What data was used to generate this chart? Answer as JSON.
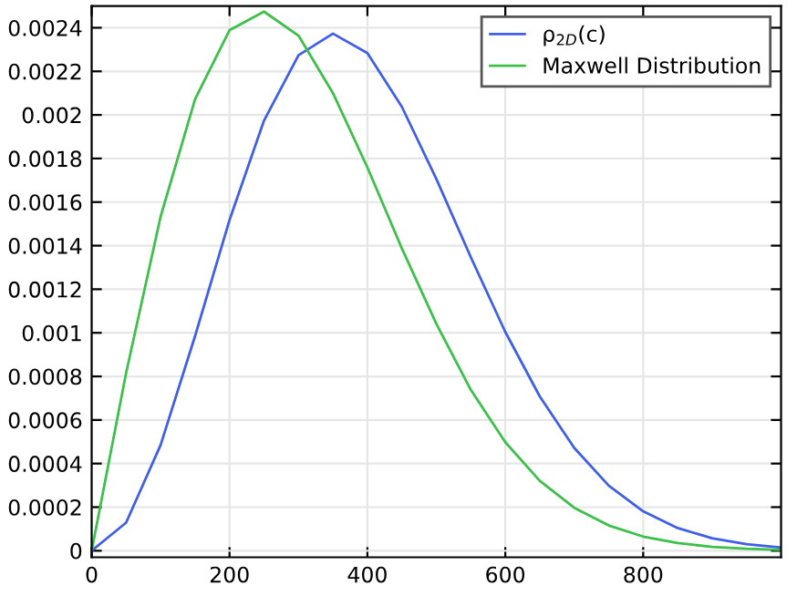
{
  "chart_data": {
    "type": "line",
    "x": [
      0,
      50,
      100,
      150,
      200,
      250,
      300,
      350,
      400,
      450,
      500,
      550,
      600,
      650,
      700,
      750,
      800,
      850,
      900,
      950,
      1000
    ],
    "series": [
      {
        "name": "ρ$_{2D}$(c)",
        "color": "#3f5fe8",
        "values": [
          0,
          0.000129,
          0.000485,
          0.000985,
          0.001518,
          0.001974,
          0.002274,
          0.002373,
          0.002284,
          0.002037,
          0.001706,
          0.001347,
          0.001004,
          0.000708,
          0.000472,
          0.000299,
          0.000181,
          0.000104,
          5.7e-05,
          3e-05,
          1.5e-05
        ]
      },
      {
        "name": "Maxwell Distribution",
        "color": "#3cc04a",
        "values": [
          0,
          0.000816,
          0.001533,
          0.002072,
          0.002389,
          0.002474,
          0.002364,
          0.0021,
          0.001759,
          0.001387,
          0.001041,
          0.000738,
          0.000498,
          0.000321,
          0.000197,
          0.000116,
          6.5e-05,
          3.5e-05,
          1.8e-05,
          9e-06,
          4e-06
        ]
      }
    ],
    "xlim": [
      0,
      1000
    ],
    "xticks": [
      0,
      200,
      400,
      600,
      800
    ],
    "ylim": [
      -3e-05,
      0.0025
    ],
    "yticks": [
      {
        "value": 0,
        "label": "0"
      },
      {
        "value": 0.0002,
        "label": "0.0002"
      },
      {
        "value": 0.0004,
        "label": "0.0004"
      },
      {
        "value": 0.0006,
        "label": "0.0006"
      },
      {
        "value": 0.0008,
        "label": "0.0008"
      },
      {
        "value": 0.001,
        "label": "0.001"
      },
      {
        "value": 0.0012,
        "label": "0.0012"
      },
      {
        "value": 0.0014,
        "label": "0.0014"
      },
      {
        "value": 0.0016,
        "label": "0.0016"
      },
      {
        "value": 0.0018,
        "label": "0.0018"
      },
      {
        "value": 0.002,
        "label": "0.002"
      },
      {
        "value": 0.0022,
        "label": "0.0022"
      },
      {
        "value": 0.0024,
        "label": "0.0024"
      }
    ],
    "grid": true,
    "legend": "top right",
    "marker": "none",
    "line_style": "solid"
  }
}
